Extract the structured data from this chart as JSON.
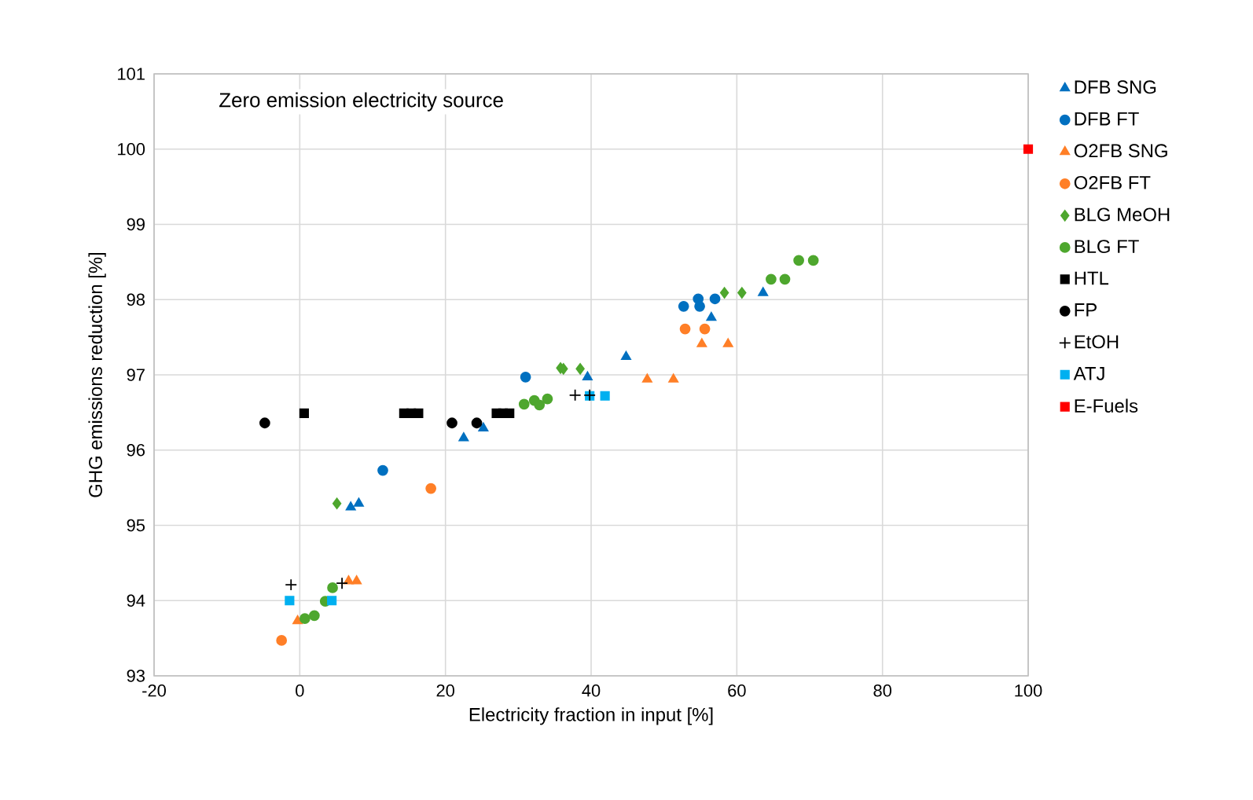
{
  "chart_data": {
    "type": "scatter",
    "xlabel": "Electricity fraction in input [%]",
    "ylabel": "GHG emissions reduction [%]",
    "annotations": [
      "Zero emission electricity source"
    ],
    "xlim": [
      -20,
      100
    ],
    "ylim": [
      93,
      101
    ],
    "xticks": [
      -20,
      0,
      20,
      40,
      60,
      80,
      100
    ],
    "yticks": [
      93,
      94,
      95,
      96,
      97,
      98,
      99,
      100,
      101
    ],
    "grid": true,
    "legend": "right",
    "series": [
      {
        "name": "DFB SNG",
        "color": "#0070c0",
        "marker": "triangle",
        "x": [
          7.0,
          8.1,
          22.5,
          25.2,
          39.5,
          44.8,
          56.5,
          63.6
        ],
        "values": [
          95.24,
          95.29,
          96.16,
          96.29,
          96.97,
          97.24,
          97.76,
          98.09
        ]
      },
      {
        "name": "DFB FT",
        "color": "#0070c0",
        "marker": "circle",
        "x": [
          11.4,
          31.0,
          52.7,
          54.7,
          54.9,
          57.0
        ],
        "values": [
          95.73,
          96.97,
          97.91,
          98.01,
          97.91,
          98.01
        ]
      },
      {
        "name": "O2FB SNG",
        "color": "#ff7f27",
        "marker": "triangle",
        "x": [
          -0.3,
          6.7,
          7.8,
          47.7,
          51.3,
          55.2,
          58.8
        ],
        "values": [
          93.73,
          94.26,
          94.26,
          96.94,
          96.94,
          97.41,
          97.41
        ]
      },
      {
        "name": "O2FB FT",
        "color": "#ff7f27",
        "marker": "circle",
        "x": [
          -2.5,
          18.0,
          52.9,
          55.6
        ],
        "values": [
          93.47,
          95.49,
          97.61,
          97.61
        ]
      },
      {
        "name": "BLG MeOH",
        "color": "#4ea72e",
        "marker": "diamond",
        "x": [
          5.1,
          35.8,
          36.2,
          38.5,
          58.3,
          60.7
        ],
        "values": [
          95.29,
          97.09,
          97.08,
          97.08,
          98.09,
          98.09
        ]
      },
      {
        "name": "BLG FT",
        "color": "#4ea72e",
        "marker": "circle",
        "x": [
          0.7,
          2.0,
          3.5,
          4.5,
          30.8,
          32.2,
          32.9,
          34.0,
          64.7,
          66.6,
          68.5,
          70.5
        ],
        "values": [
          93.76,
          93.8,
          93.99,
          94.17,
          96.61,
          96.66,
          96.6,
          96.68,
          98.27,
          98.27,
          98.52,
          98.52
        ]
      },
      {
        "name": "HTL",
        "color": "#000000",
        "marker": "square",
        "x": [
          0.6,
          14.3,
          15.3,
          16.3,
          27.0,
          27.9,
          28.8
        ],
        "values": [
          96.49,
          96.49,
          96.49,
          96.49,
          96.49,
          96.49,
          96.49
        ]
      },
      {
        "name": "FP",
        "color": "#000000",
        "marker": "circle",
        "x": [
          -4.8,
          20.9,
          24.3
        ],
        "values": [
          96.36,
          96.36,
          96.36
        ]
      },
      {
        "name": "EtOH",
        "color": "#000000",
        "marker": "cross",
        "x": [
          -1.2,
          5.8,
          37.8,
          39.8
        ],
        "values": [
          94.21,
          94.23,
          96.73,
          96.73
        ]
      },
      {
        "name": "ATJ",
        "color": "#00b0f0",
        "marker": "square",
        "x": [
          -1.4,
          4.4,
          39.8,
          41.9
        ],
        "values": [
          94.0,
          94.0,
          96.72,
          96.72
        ]
      },
      {
        "name": "E-Fuels",
        "color": "#ff0000",
        "marker": "square",
        "x": [
          100
        ],
        "values": [
          100
        ]
      }
    ]
  }
}
